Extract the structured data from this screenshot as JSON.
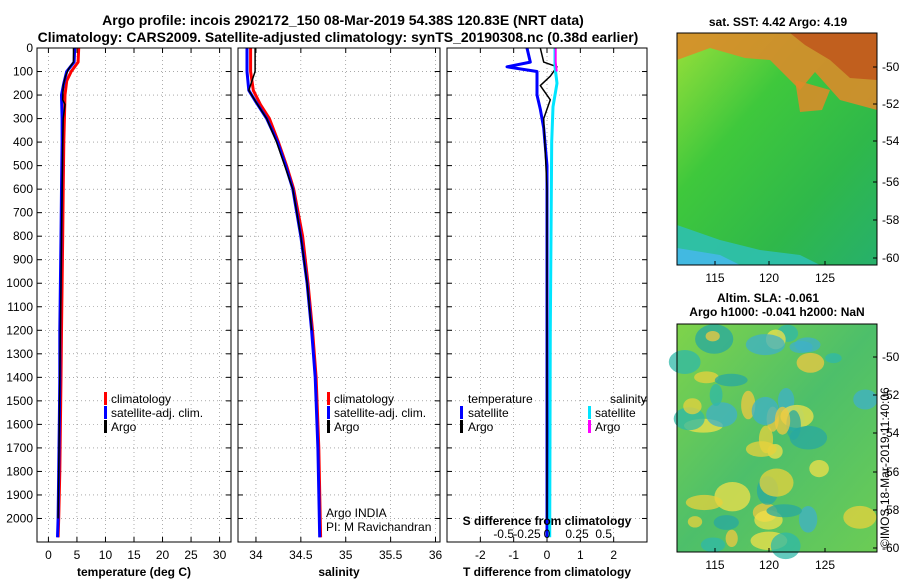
{
  "header": {
    "title_line1": "Argo profile: incois 2902172_150 08-Mar-2019 54.38S 120.83E (NRT data)",
    "title_line2": "Climatology: CARS2009. Satellite-adjusted climatology: synTS_20190308.nc (0.38d earlier)"
  },
  "colors": {
    "climatology": "#ff0000",
    "satellite": "#0000ff",
    "argo": "#000000",
    "sat_salinity": "#00e5ff",
    "argo_salinity": "#ff00ff",
    "grid": "#777777"
  },
  "chart_data": [
    {
      "id": "temperature",
      "type": "line",
      "xlabel": "temperature (deg C)",
      "xlim": [
        -2,
        32
      ],
      "xticks": [
        0,
        5,
        10,
        15,
        20,
        25,
        30
      ],
      "ylim": [
        2100,
        0
      ],
      "yticks": [
        0,
        100,
        200,
        300,
        400,
        500,
        600,
        700,
        800,
        900,
        1000,
        1100,
        1200,
        1300,
        1400,
        1500,
        1600,
        1700,
        1800,
        1900,
        2000
      ],
      "legend": {
        "position": "lower-right",
        "entries": [
          "climatology",
          "satellite-adj. clim.",
          "Argo"
        ]
      },
      "series": [
        {
          "name": "climatology",
          "color": "#ff0000",
          "width": 3,
          "points": [
            [
              5.3,
              0
            ],
            [
              5.2,
              60
            ],
            [
              4.0,
              100
            ],
            [
              3.2,
              140
            ],
            [
              2.9,
              200
            ],
            [
              2.8,
              300
            ],
            [
              2.7,
              400
            ],
            [
              2.6,
              600
            ],
            [
              2.5,
              800
            ],
            [
              2.4,
              1000
            ],
            [
              2.3,
              1200
            ],
            [
              2.2,
              1400
            ],
            [
              2.1,
              1600
            ],
            [
              2.0,
              1800
            ],
            [
              1.8,
              2000
            ],
            [
              1.7,
              2080
            ]
          ]
        },
        {
          "name": "satellite-adj. clim.",
          "color": "#0000ff",
          "width": 3,
          "points": [
            [
              4.6,
              0
            ],
            [
              4.5,
              60
            ],
            [
              3.2,
              100
            ],
            [
              2.7,
              150
            ],
            [
              2.3,
              200
            ],
            [
              2.4,
              300
            ],
            [
              2.4,
              400
            ],
            [
              2.3,
              600
            ],
            [
              2.2,
              800
            ],
            [
              2.1,
              1000
            ],
            [
              2.0,
              1200
            ],
            [
              2.0,
              1400
            ],
            [
              1.9,
              1600
            ],
            [
              1.8,
              1800
            ],
            [
              1.7,
              2000
            ],
            [
              1.6,
              2080
            ]
          ]
        },
        {
          "name": "Argo",
          "color": "#000000",
          "width": 1.5,
          "points": [
            [
              4.4,
              0
            ],
            [
              4.4,
              60
            ],
            [
              3.5,
              90
            ],
            [
              3.0,
              120
            ],
            [
              2.6,
              160
            ],
            [
              2.5,
              220
            ],
            [
              2.9,
              240
            ],
            [
              2.6,
              300
            ],
            [
              2.5,
              400
            ],
            [
              2.4,
              600
            ],
            [
              2.3,
              800
            ],
            [
              2.2,
              1000
            ],
            [
              2.1,
              1200
            ],
            [
              2.0,
              1400
            ],
            [
              1.9,
              1600
            ],
            [
              1.8,
              1800
            ],
            [
              1.7,
              2000
            ]
          ]
        }
      ]
    },
    {
      "id": "salinity",
      "type": "line",
      "xlabel": "salinity",
      "xlim": [
        33.8,
        36.05
      ],
      "xticks": [
        34,
        34.5,
        35,
        35.5,
        36
      ],
      "ylim": [
        2100,
        0
      ],
      "legend": {
        "position": "lower-right",
        "entries": [
          "climatology",
          "satellite-adj. clim.",
          "Argo"
        ]
      },
      "annotations": [
        "Argo INDIA",
        "PI: M Ravichandran"
      ],
      "series": [
        {
          "name": "climatology",
          "color": "#ff0000",
          "width": 3,
          "points": [
            [
              33.94,
              0
            ],
            [
              33.94,
              100
            ],
            [
              33.97,
              180
            ],
            [
              34.05,
              240
            ],
            [
              34.15,
              300
            ],
            [
              34.25,
              400
            ],
            [
              34.34,
              500
            ],
            [
              34.42,
              600
            ],
            [
              34.52,
              800
            ],
            [
              34.58,
              1000
            ],
            [
              34.63,
              1200
            ],
            [
              34.67,
              1400
            ],
            [
              34.7,
              1700
            ],
            [
              34.72,
              2080
            ]
          ]
        },
        {
          "name": "satellite-adj. clim.",
          "color": "#0000ff",
          "width": 3,
          "points": [
            [
              33.9,
              0
            ],
            [
              33.9,
              100
            ],
            [
              33.92,
              180
            ],
            [
              34.0,
              230
            ],
            [
              34.12,
              300
            ],
            [
              34.24,
              400
            ],
            [
              34.33,
              500
            ],
            [
              34.41,
              600
            ],
            [
              34.5,
              800
            ],
            [
              34.57,
              1000
            ],
            [
              34.62,
              1200
            ],
            [
              34.66,
              1400
            ],
            [
              34.69,
              1700
            ],
            [
              34.71,
              2080
            ]
          ]
        },
        {
          "name": "Argo",
          "color": "#000000",
          "width": 1.5,
          "points": [
            [
              33.99,
              0
            ],
            [
              33.99,
              100
            ],
            [
              33.92,
              180
            ],
            [
              34.0,
              230
            ],
            [
              34.12,
              300
            ],
            [
              34.23,
              400
            ],
            [
              34.32,
              500
            ],
            [
              34.41,
              600
            ],
            [
              34.5,
              800
            ],
            [
              34.57,
              1000
            ],
            [
              34.62,
              1200
            ]
          ]
        }
      ]
    },
    {
      "id": "difference",
      "type": "line",
      "xlabel": "T difference from climatology",
      "xlabel_top": "S difference from climatology",
      "xlim": [
        -3,
        3
      ],
      "xticks": [
        -2,
        -1,
        0,
        1,
        2
      ],
      "xticks_salinity": [
        "-0.5",
        "-0.25",
        "0",
        "0.25",
        "0.5"
      ],
      "ylim": [
        2100,
        0
      ],
      "legend": {
        "position": "lower-center",
        "temperature_title": "temperature",
        "salinity_title": "salinity",
        "temperature_entries": [
          "satellite",
          "Argo"
        ],
        "salinity_entries": [
          "satellite",
          "Argo"
        ]
      },
      "series": [
        {
          "name": "temperature satellite",
          "color": "#0000ff",
          "width": 3,
          "points": [
            [
              -0.6,
              0
            ],
            [
              -0.5,
              60
            ],
            [
              -1.2,
              80
            ],
            [
              -0.3,
              100
            ],
            [
              -0.3,
              200
            ],
            [
              -0.2,
              260
            ],
            [
              -0.1,
              340
            ],
            [
              0.0,
              500
            ],
            [
              0.0,
              2080
            ]
          ]
        },
        {
          "name": "temperature Argo",
          "color": "#000000",
          "width": 1.5,
          "points": [
            [
              -0.2,
              0
            ],
            [
              -0.1,
              60
            ],
            [
              0.3,
              80
            ],
            [
              0.1,
              120
            ],
            [
              -0.2,
              160
            ],
            [
              0.1,
              220
            ],
            [
              -0.1,
              300
            ],
            [
              0.0,
              600
            ],
            [
              0.0,
              2000
            ]
          ]
        },
        {
          "name": "salinity satellite",
          "color": "#00e5ff",
          "width": 3,
          "points": [
            [
              0.24,
              0
            ],
            [
              0.24,
              80
            ],
            [
              0.3,
              150
            ],
            [
              0.18,
              250
            ],
            [
              0.14,
              400
            ],
            [
              0.12,
              800
            ],
            [
              0.1,
              1200
            ],
            [
              0.08,
              2080
            ]
          ]
        },
        {
          "name": "salinity Argo",
          "color": "#ff00ff",
          "width": 2,
          "points": [
            [
              0.26,
              0
            ],
            [
              0.26,
              60
            ],
            [
              0.29,
              100
            ]
          ]
        }
      ]
    }
  ],
  "maps": {
    "sst": {
      "title": "sat. SST: 4.42 Argo: 4.19",
      "lat_ticks": [
        "-50",
        "-52",
        "-54",
        "-56",
        "-58",
        "-60"
      ],
      "lon_ticks": [
        "115",
        "120",
        "125"
      ]
    },
    "sla": {
      "title_line1": "Altim. SLA: -0.061",
      "title_line2": "Argo h1000: -0.041 h2000: NaN",
      "lat_ticks": [
        "-50",
        "-52",
        "-54",
        "-56",
        "-58",
        "-60"
      ],
      "lon_ticks": [
        "115",
        "120",
        "125"
      ]
    }
  },
  "credit": "©IMOS 18-Mar-2019 11:40:06"
}
